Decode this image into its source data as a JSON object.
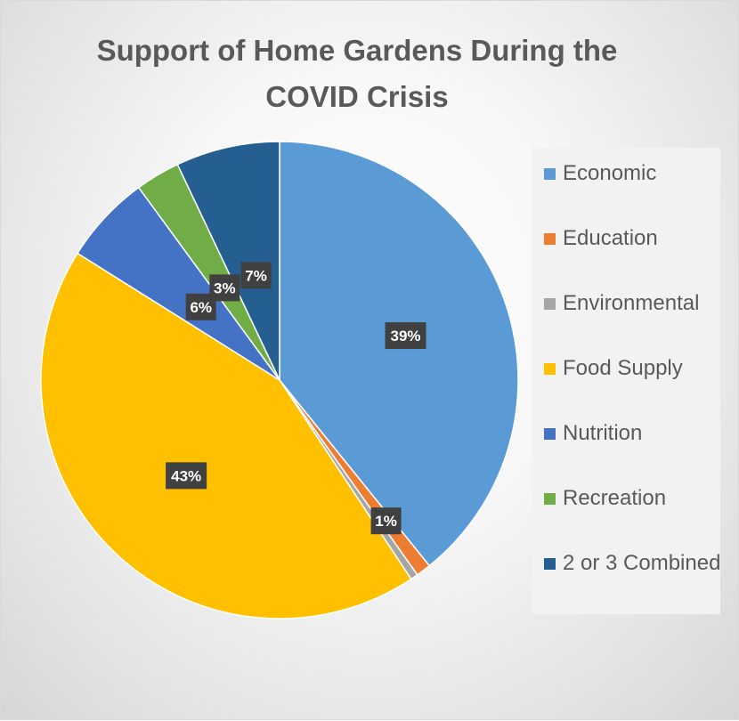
{
  "chart_data": {
    "type": "pie",
    "title": "Support of Home Gardens During the COVID Crisis",
    "categories": [
      "Economic",
      "Education",
      "Environmental",
      "Food Supply",
      "Nutrition",
      "Recreation",
      "2 or 3 Combined"
    ],
    "values": [
      39,
      1,
      0.5,
      43,
      6,
      3,
      7
    ],
    "data_labels": [
      "39%",
      "1%",
      "",
      "43%",
      "6%",
      "3%",
      "7%"
    ],
    "colors": [
      "#5B9BD5",
      "#ED7D31",
      "#A5A5A5",
      "#FFC000",
      "#4472C4",
      "#70AD47",
      "#255E91"
    ],
    "legend_position": "right"
  }
}
